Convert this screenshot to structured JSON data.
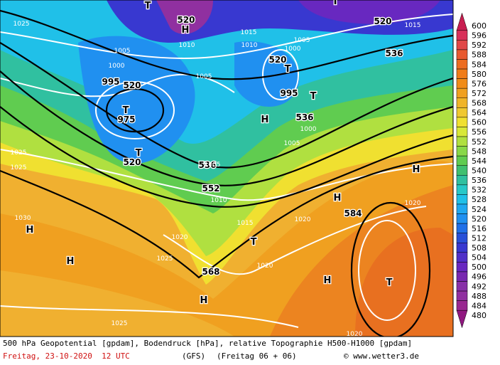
{
  "map": {
    "labels": [
      "520",
      "520",
      "520",
      "520",
      "520",
      "536",
      "536",
      "536",
      "552",
      "568",
      "584",
      "1025",
      "1025",
      "1025",
      "1030",
      "1005",
      "1000",
      "995",
      "975",
      "1010",
      "1005",
      "1015",
      "1010",
      "1005",
      "1000",
      "995",
      "1000",
      "1005",
      "1005",
      "1010",
      "1015",
      "1020",
      "1025",
      "1020",
      "1020",
      "1020",
      "1015",
      "1025",
      "1020",
      "H",
      "H",
      "H",
      "H",
      "H",
      "H",
      "H",
      "T",
      "T",
      "T",
      "T",
      "T",
      "T",
      "T",
      "T",
      "H"
    ]
  },
  "legend": {
    "ticks": [
      600,
      596,
      592,
      588,
      584,
      580,
      576,
      572,
      568,
      564,
      560,
      556,
      552,
      548,
      544,
      540,
      536,
      532,
      528,
      524,
      520,
      516,
      512,
      508,
      504,
      500,
      496,
      492,
      488,
      484,
      480
    ],
    "colors": [
      "#c81e50",
      "#d8305a",
      "#e04848",
      "#e85a30",
      "#ec6c20",
      "#f07c18",
      "#f08c18",
      "#f0a020",
      "#f0b428",
      "#f0c830",
      "#f0e030",
      "#d8e838",
      "#b0e040",
      "#88d848",
      "#60cc50",
      "#40c070",
      "#30c0a0",
      "#28c8c8",
      "#20c0e8",
      "#20a8f0",
      "#2090f0",
      "#2070e8",
      "#2850d8",
      "#3838d0",
      "#5030c8",
      "#6828c0",
      "#7828b0",
      "#8830a8",
      "#9030a0",
      "#982890",
      "#901880"
    ]
  },
  "footer": {
    "description": "500 hPa Geopotential [gpdam], Bodendruck [hPa], relative Topographie H500-H1000 [gpdam]",
    "date": "Freitag, 23-10-2020  12 UTC",
    "model": "(GFS)",
    "run": "(Freitag 06 + 06)",
    "source": "© www.wetter3.de"
  }
}
